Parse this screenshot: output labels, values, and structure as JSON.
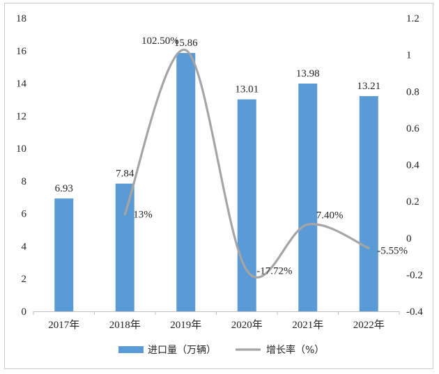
{
  "chart_data": {
    "type": "bar",
    "categories": [
      "2017年",
      "2018年",
      "2019年",
      "2020年",
      "2021年",
      "2022年"
    ],
    "series": [
      {
        "name": "进口量（万辆）",
        "type": "bar",
        "axis": "left",
        "color": "#5b9bd5",
        "values": [
          6.93,
          7.84,
          15.86,
          13.01,
          13.98,
          13.21
        ],
        "labels": [
          "6.93",
          "7.84",
          "15.86",
          "13.01",
          "13.98",
          "13.21"
        ]
      },
      {
        "name": "增长率（%）",
        "type": "line",
        "axis": "right",
        "color": "#a5a5a5",
        "smooth": true,
        "x": [
          "2018年",
          "2019年",
          "2020年",
          "2021年",
          "2022年"
        ],
        "values": [
          0.13,
          1.025,
          -0.1772,
          0.074,
          -0.0555
        ],
        "labels": [
          "13%",
          "102.50%",
          "-17.72%",
          "7.40%",
          "-5.55%"
        ]
      }
    ],
    "y_left": {
      "min": 0,
      "max": 18,
      "step": 2,
      "ticks": [
        "0",
        "2",
        "4",
        "6",
        "8",
        "10",
        "12",
        "14",
        "16",
        "18"
      ]
    },
    "y_right": {
      "min": -0.4,
      "max": 1.2,
      "step": 0.2,
      "ticks": [
        "-0.4",
        "-0.2",
        "0",
        "0.2",
        "0.4",
        "0.6",
        "0.8",
        "1",
        "1.2"
      ]
    },
    "grid": false,
    "legend": "bottom-center",
    "title": "",
    "xlabel": "",
    "ylabel": ""
  }
}
